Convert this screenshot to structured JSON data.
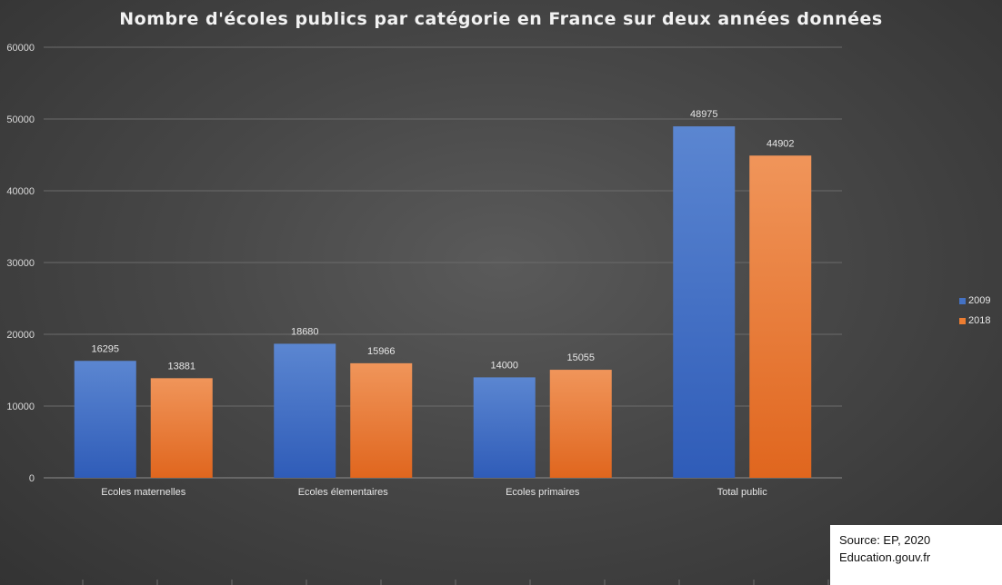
{
  "chart_data": {
    "type": "bar",
    "title": "Nombre d'écoles publics par catégorie en France sur deux années données",
    "categories": [
      "Ecoles maternelles",
      "Ecoles élementaires",
      "Ecoles primaires",
      "Total public"
    ],
    "series": [
      {
        "name": "2009",
        "values": [
          16295,
          18680,
          14000,
          48975
        ],
        "color": "#4472c4"
      },
      {
        "name": "2018",
        "values": [
          13881,
          15966,
          15055,
          44902
        ],
        "color": "#ed7d31"
      }
    ],
    "ylim": [
      0,
      60000
    ],
    "yticks": [
      "0",
      "10000",
      "20000",
      "30000",
      "40000",
      "50000",
      "60000"
    ],
    "xlabel": "",
    "ylabel": "",
    "grid": true,
    "legend_position": "right",
    "data_labels": true
  },
  "source": {
    "line1": "Source: EP, 2020",
    "line2": "Education.gouv.fr"
  }
}
